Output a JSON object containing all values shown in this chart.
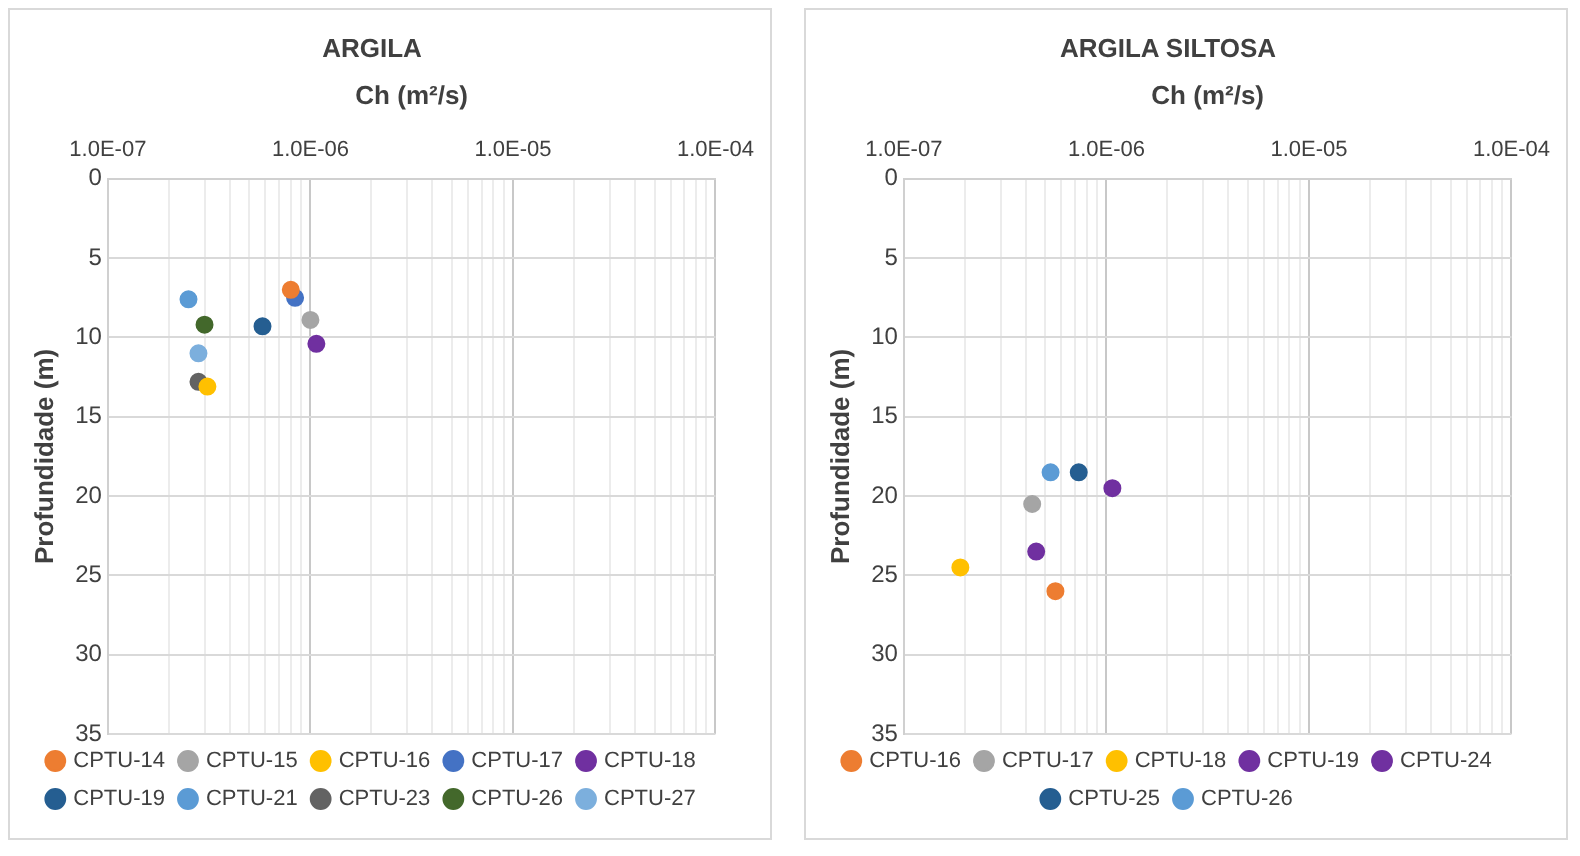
{
  "chart_data": [
    {
      "type": "scatter",
      "title": "ARGILA",
      "xlabel": "Ch (m²/s)",
      "ylabel": "Profundidade (m)",
      "log": "x",
      "grid": true,
      "legend": "bottom",
      "marker": "circle",
      "xlim": [
        1e-07,
        0.0001
      ],
      "ylim": [
        35,
        0
      ],
      "xticks": [
        {
          "value": 1e-07,
          "label": "1.0E-07"
        },
        {
          "value": 2e-07,
          "label": null
        },
        {
          "value": 3e-07,
          "label": null
        },
        {
          "value": 4e-07,
          "label": null
        },
        {
          "value": 5e-07,
          "label": null
        },
        {
          "value": 6e-07,
          "label": null
        },
        {
          "value": 7e-07,
          "label": null
        },
        {
          "value": 8e-07,
          "label": null
        },
        {
          "value": 9e-07,
          "label": null
        },
        {
          "value": 1e-06,
          "label": "1.0E-06"
        },
        {
          "value": 2e-06,
          "label": null
        },
        {
          "value": 3e-06,
          "label": null
        },
        {
          "value": 4e-06,
          "label": null
        },
        {
          "value": 5e-06,
          "label": null
        },
        {
          "value": 6e-06,
          "label": null
        },
        {
          "value": 7e-06,
          "label": null
        },
        {
          "value": 8e-06,
          "label": null
        },
        {
          "value": 9e-06,
          "label": null
        },
        {
          "value": 1e-05,
          "label": "1.0E-05"
        },
        {
          "value": 2e-05,
          "label": null
        },
        {
          "value": 3e-05,
          "label": null
        },
        {
          "value": 4e-05,
          "label": null
        },
        {
          "value": 5e-05,
          "label": null
        },
        {
          "value": 6e-05,
          "label": null
        },
        {
          "value": 7e-05,
          "label": null
        },
        {
          "value": 8e-05,
          "label": null
        },
        {
          "value": 9e-05,
          "label": null
        },
        {
          "value": 0.0001,
          "label": "1.0E-04"
        }
      ],
      "yticks": [
        0,
        5,
        10,
        15,
        20,
        25,
        30,
        35
      ],
      "series": [
        {
          "name": "CPTU-14",
          "color": "#ed7d31",
          "x": [
            8e-07
          ],
          "values": [
            7.0
          ]
        },
        {
          "name": "CPTU-15",
          "color": "#a5a5a5",
          "x": [
            1e-06
          ],
          "values": [
            8.9
          ]
        },
        {
          "name": "CPTU-16",
          "color": "#ffc000",
          "x": [
            3.1e-07
          ],
          "values": [
            13.1
          ]
        },
        {
          "name": "CPTU-17",
          "color": "#4472c4",
          "x": [
            8.4e-07
          ],
          "values": [
            7.5
          ]
        },
        {
          "name": "CPTU-18",
          "color": "#7030a0",
          "x": [
            1.07e-06
          ],
          "values": [
            10.4
          ]
        },
        {
          "name": "CPTU-19",
          "color": "#255e91",
          "x": [
            5.8e-07
          ],
          "values": [
            9.3
          ]
        },
        {
          "name": "CPTU-21",
          "color": "#5b9bd5",
          "x": [
            2.5e-07
          ],
          "values": [
            7.6
          ]
        },
        {
          "name": "CPTU-23",
          "color": "#636363",
          "x": [
            2.8e-07
          ],
          "values": [
            12.8
          ]
        },
        {
          "name": "CPTU-26",
          "color": "#43682b",
          "x": [
            3e-07
          ],
          "values": [
            9.2
          ]
        },
        {
          "name": "CPTU-27",
          "color": "#7cafdd",
          "x": [
            2.8e-07
          ],
          "values": [
            11.0
          ]
        }
      ]
    },
    {
      "type": "scatter",
      "title": "ARGILA SILTOSA",
      "xlabel": "Ch (m²/s)",
      "ylabel": "Profundidade (m)",
      "log": "x",
      "grid": true,
      "legend": "bottom",
      "marker": "circle",
      "xlim": [
        1e-07,
        0.0001
      ],
      "ylim": [
        35,
        0
      ],
      "xticks": [
        {
          "value": 1e-07,
          "label": "1.0E-07"
        },
        {
          "value": 2e-07,
          "label": null
        },
        {
          "value": 3e-07,
          "label": null
        },
        {
          "value": 4e-07,
          "label": null
        },
        {
          "value": 5e-07,
          "label": null
        },
        {
          "value": 6e-07,
          "label": null
        },
        {
          "value": 7e-07,
          "label": null
        },
        {
          "value": 8e-07,
          "label": null
        },
        {
          "value": 9e-07,
          "label": null
        },
        {
          "value": 1e-06,
          "label": "1.0E-06"
        },
        {
          "value": 2e-06,
          "label": null
        },
        {
          "value": 3e-06,
          "label": null
        },
        {
          "value": 4e-06,
          "label": null
        },
        {
          "value": 5e-06,
          "label": null
        },
        {
          "value": 6e-06,
          "label": null
        },
        {
          "value": 7e-06,
          "label": null
        },
        {
          "value": 8e-06,
          "label": null
        },
        {
          "value": 9e-06,
          "label": null
        },
        {
          "value": 1e-05,
          "label": "1.0E-05"
        },
        {
          "value": 2e-05,
          "label": null
        },
        {
          "value": 3e-05,
          "label": null
        },
        {
          "value": 4e-05,
          "label": null
        },
        {
          "value": 5e-05,
          "label": null
        },
        {
          "value": 6e-05,
          "label": null
        },
        {
          "value": 7e-05,
          "label": null
        },
        {
          "value": 8e-05,
          "label": null
        },
        {
          "value": 9e-05,
          "label": null
        },
        {
          "value": 0.0001,
          "label": "1.0E-04"
        }
      ],
      "yticks": [
        0,
        5,
        10,
        15,
        20,
        25,
        30,
        35
      ],
      "series": [
        {
          "name": "CPTU-16",
          "color": "#ed7d31",
          "x": [
            5.6e-07
          ],
          "values": [
            26.0
          ]
        },
        {
          "name": "CPTU-17",
          "color": "#a5a5a5",
          "x": [
            4.3e-07
          ],
          "values": [
            20.5
          ]
        },
        {
          "name": "CPTU-18",
          "color": "#ffc000",
          "x": [
            1.9e-07
          ],
          "values": [
            24.5
          ]
        },
        {
          "name": "CPTU-19",
          "color": "#7030a0",
          "x": [
            1.07e-06
          ],
          "values": [
            19.5
          ]
        },
        {
          "name": "CPTU-24",
          "color": "#7030a0",
          "x": [
            4.5e-07
          ],
          "values": [
            23.5
          ]
        },
        {
          "name": "CPTU-25",
          "color": "#255e91",
          "x": [
            7.3e-07
          ],
          "values": [
            18.5
          ]
        },
        {
          "name": "CPTU-26",
          "color": "#5b9bd5",
          "x": [
            5.3e-07
          ],
          "values": [
            18.5
          ]
        }
      ]
    }
  ]
}
